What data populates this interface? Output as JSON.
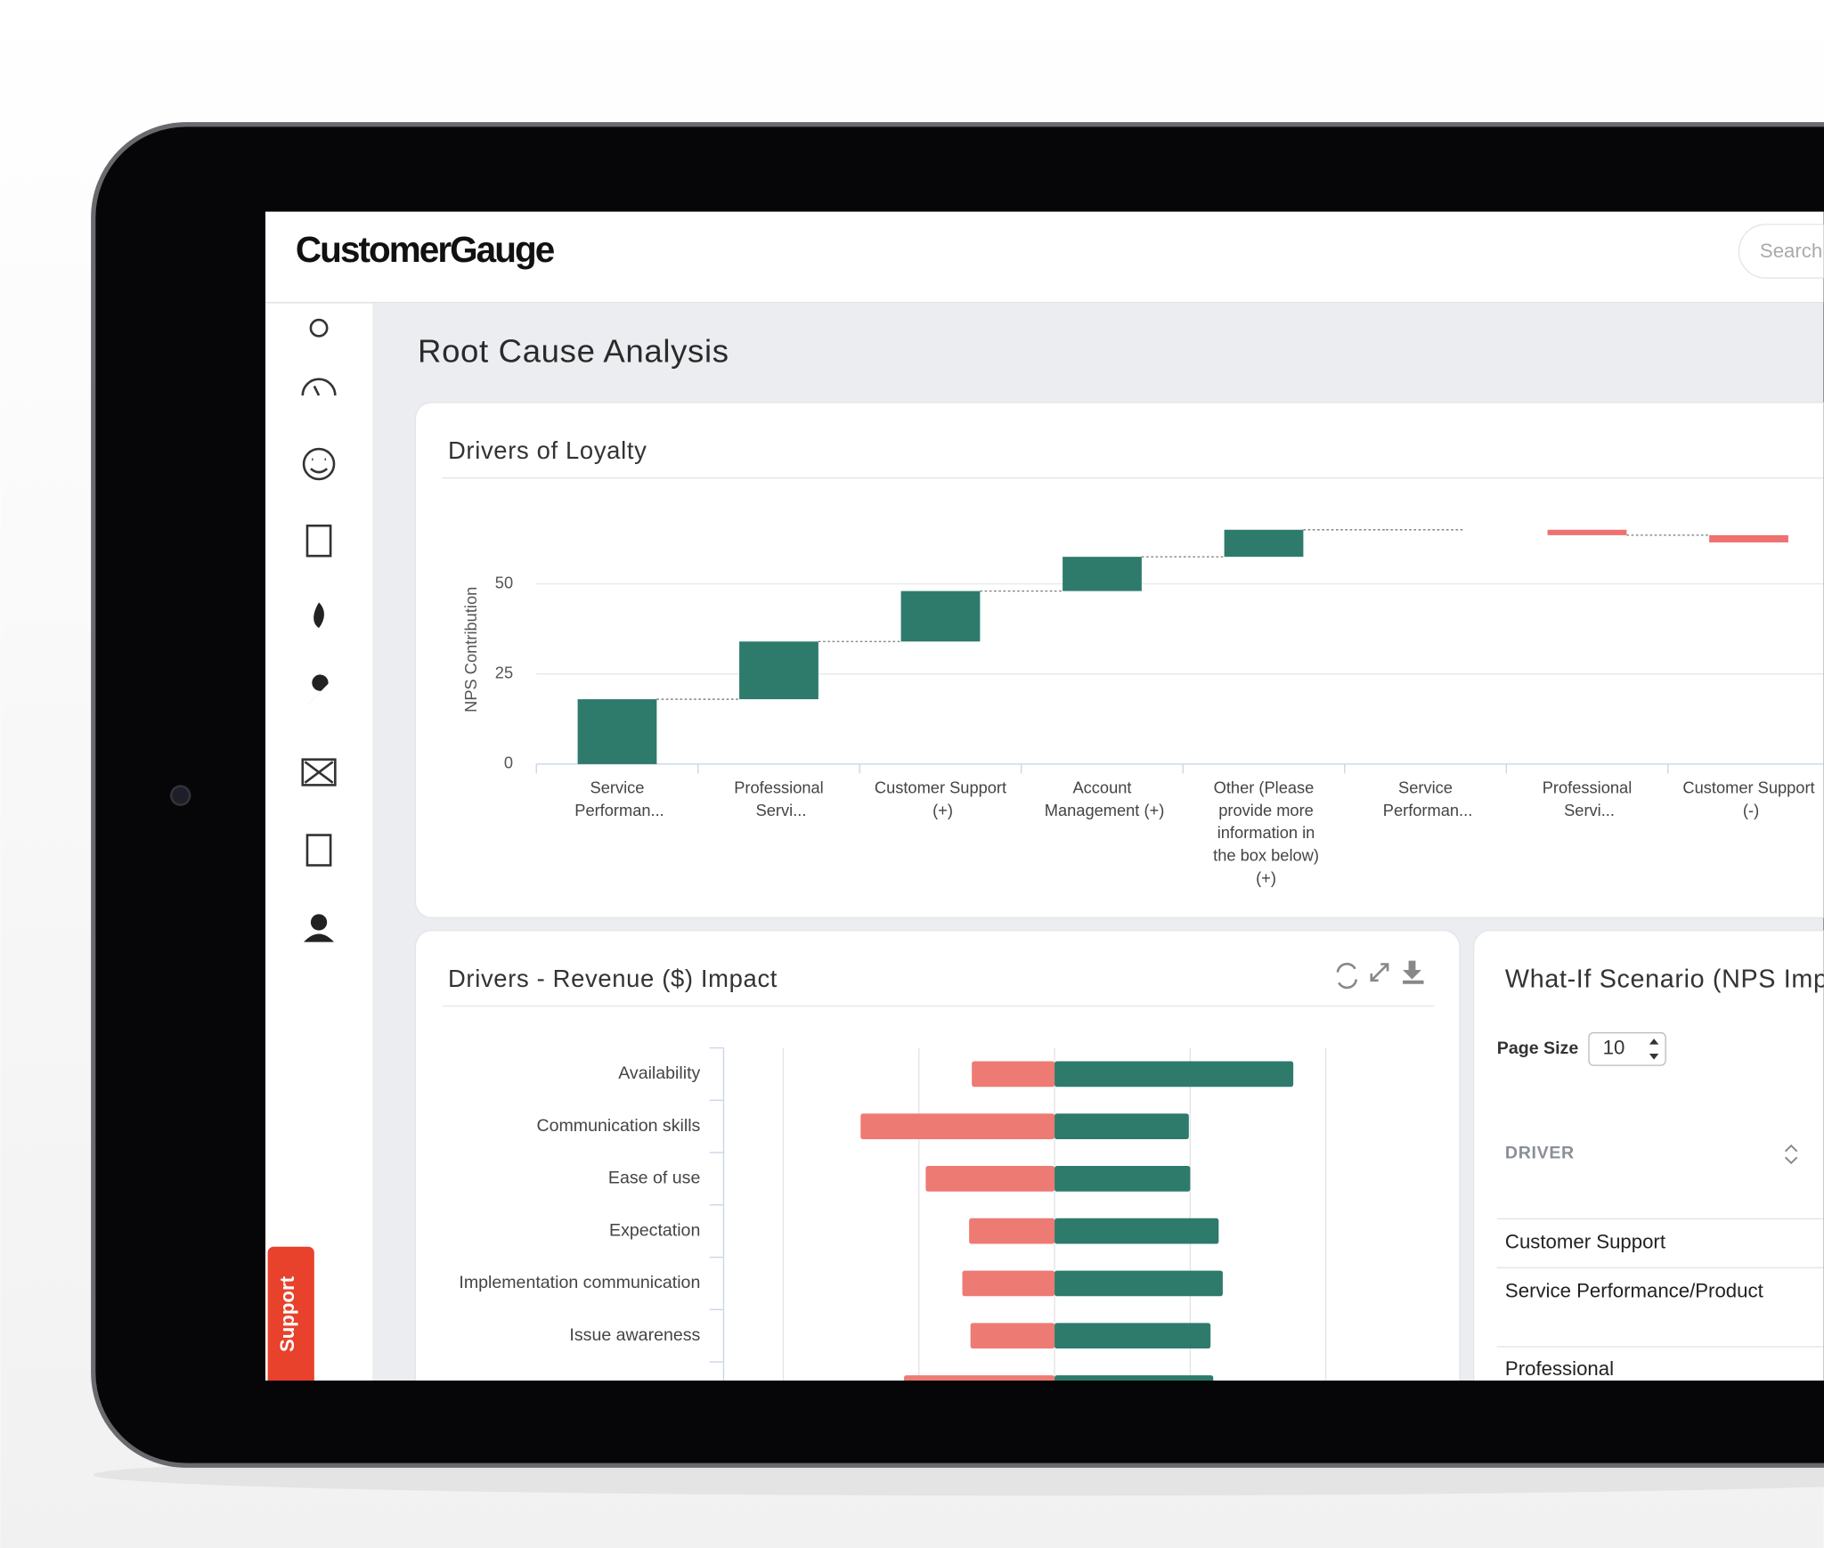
{
  "header": {
    "logo": "CustomerGauge",
    "search_placeholder": "Search"
  },
  "page_title": "Root Cause Analysis",
  "support_tab": "Support",
  "chart_data": [
    {
      "type": "waterfall",
      "title": "Drivers of Loyalty",
      "y_label": "NPS Contribution",
      "categories": [
        "Service Performan...",
        "Professional Servi...",
        "Customer Support (+)",
        "Account Management (+)",
        "Other (Please provide more information in the box below) (+)",
        "Service Performan...",
        "Professional Servi...",
        "Customer Support (-)"
      ],
      "values": [
        18,
        16,
        14,
        9.5,
        7.5,
        0,
        -1.5,
        -2
      ],
      "color_increase": "#2e7b6c",
      "color_decrease": "#ee7070",
      "ylim": [
        0,
        70
      ],
      "yticks": [
        0,
        25,
        50
      ],
      "grid": true
    },
    {
      "type": "diverging_bar",
      "title": "Drivers - Revenue ($) Impact",
      "categories": [
        "Availability",
        "Communication skills",
        "Ease of use",
        "Expectation",
        "Implementation communication",
        "Issue awareness",
        null
      ],
      "series": [
        {
          "color": "#ee7a74",
          "values": [
            -0.61,
            -1.43,
            -0.95,
            -0.63,
            -0.68,
            -0.62,
            -1.11
          ]
        },
        {
          "color": "#2e7b6c",
          "values": [
            1.76,
            0.99,
            1.0,
            1.21,
            1.24,
            1.15,
            1.17
          ]
        }
      ],
      "xlim": [
        -2.44,
        2.43
      ],
      "xticks": [
        -2,
        -1,
        0,
        1,
        2
      ],
      "grid": true
    }
  ],
  "what_if": {
    "title": "What-If Scenario (NPS Impact)",
    "page_size_label": "Page Size",
    "page_size": 10,
    "column_header": "DRIVER",
    "rows": [
      "Customer Support",
      "Service Performance/Product",
      "Professional"
    ]
  }
}
